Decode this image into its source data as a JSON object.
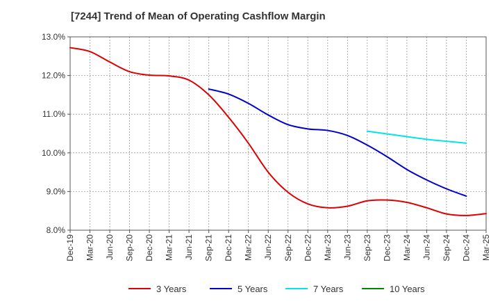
{
  "chart_data": {
    "type": "line",
    "title": "[7244]  Trend of Mean of Operating Cashflow Margin",
    "xlabel": "",
    "ylabel": "",
    "x": [
      "Dec-19",
      "Mar-20",
      "Jun-20",
      "Sep-20",
      "Dec-20",
      "Mar-21",
      "Jun-21",
      "Sep-21",
      "Dec-21",
      "Mar-22",
      "Jun-22",
      "Sep-22",
      "Dec-22",
      "Mar-23",
      "Jun-23",
      "Sep-23",
      "Dec-23",
      "Mar-24",
      "Jun-24",
      "Sep-24",
      "Dec-24",
      "Mar-25"
    ],
    "ylim": [
      8.0,
      13.0
    ],
    "yticks": [
      "8.0%",
      "9.0%",
      "10.0%",
      "11.0%",
      "12.0%",
      "13.0%"
    ],
    "ytick_values": [
      8.0,
      9.0,
      10.0,
      11.0,
      12.0,
      13.0
    ],
    "grid": true,
    "legend_position": "bottom",
    "series": [
      {
        "name": "3 Years",
        "color": "#dd0000",
        "values": [
          12.72,
          12.62,
          12.35,
          12.1,
          12.01,
          11.99,
          11.88,
          11.5,
          10.92,
          10.25,
          9.5,
          8.98,
          8.68,
          8.58,
          8.62,
          8.76,
          8.78,
          8.72,
          8.58,
          8.42,
          8.38,
          8.43
        ]
      },
      {
        "name": "5 Years",
        "color": "#0000cc",
        "values": [
          null,
          null,
          null,
          null,
          null,
          null,
          null,
          11.65,
          11.52,
          11.28,
          10.98,
          10.73,
          10.62,
          10.58,
          10.45,
          10.2,
          9.9,
          9.57,
          9.3,
          9.07,
          8.88,
          null
        ]
      },
      {
        "name": "7 Years",
        "color": "#00e5e5",
        "values": [
          null,
          null,
          null,
          null,
          null,
          null,
          null,
          null,
          null,
          null,
          null,
          null,
          null,
          null,
          null,
          10.56,
          10.49,
          10.42,
          10.35,
          10.3,
          10.25,
          null
        ]
      },
      {
        "name": "10 Years",
        "color": "#008800",
        "values": [
          null,
          null,
          null,
          null,
          null,
          null,
          null,
          null,
          null,
          null,
          null,
          null,
          null,
          null,
          null,
          null,
          null,
          null,
          null,
          null,
          null,
          null
        ]
      }
    ]
  }
}
